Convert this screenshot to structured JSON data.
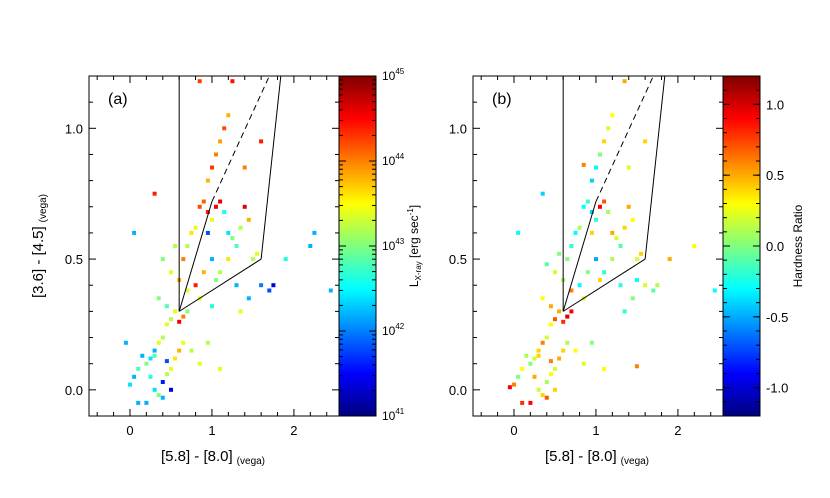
{
  "chart_data": [
    {
      "type": "scatter",
      "panel_label": "(a)",
      "xlabel_main": "[5.8] - [8.0]",
      "xlabel_sub": "(vega)",
      "ylabel_main": "[3.6] - [4.5]",
      "ylabel_sub": "(vega)",
      "xlim": [
        -0.5,
        2.55
      ],
      "ylim": [
        -0.1,
        1.2
      ],
      "xticks": [
        0,
        1,
        2
      ],
      "xticklabels": [
        "0",
        "1",
        "2"
      ],
      "yticks": [
        0.0,
        0.5,
        1.0
      ],
      "yticklabels": [
        "0.0",
        "0.5",
        "1.0"
      ],
      "colorbar": {
        "label_main": "L",
        "label_sub": "X-ray",
        "label_unit": " [erg sec",
        "label_exp": "-1",
        "label_close": "]",
        "scale": "log",
        "range_exp": [
          41,
          45
        ],
        "ticklabels": [
          {
            "base": "10",
            "exp": "41"
          },
          {
            "base": "10",
            "exp": "42"
          },
          {
            "base": "10",
            "exp": "43"
          },
          {
            "base": "10",
            "exp": "44"
          },
          {
            "base": "10",
            "exp": "45"
          }
        ]
      },
      "wedge": {
        "left_x": 0.6,
        "corner": [
          0.6,
          0.3
        ],
        "knee": [
          1.6,
          0.5
        ],
        "top_right": [
          1.84,
          1.2
        ],
        "dashed_from": [
          1.0,
          0.72
        ],
        "dashed_to": [
          1.7,
          1.2
        ]
      },
      "points": [
        [
          0.05,
          0.6,
          0.3
        ],
        [
          0.3,
          0.75,
          0.85
        ],
        [
          0.85,
          1.18,
          0.82
        ],
        [
          1.25,
          1.18,
          0.86
        ],
        [
          0.5,
          0.45,
          0.6
        ],
        [
          0.55,
          0.55,
          0.55
        ],
        [
          0.4,
          0.5,
          0.5
        ],
        [
          0.35,
          0.35,
          0.5
        ],
        [
          0.45,
          0.32,
          0.45
        ],
        [
          0.6,
          0.42,
          0.7
        ],
        [
          0.65,
          0.5,
          0.75
        ],
        [
          0.7,
          0.55,
          0.55
        ],
        [
          0.75,
          0.6,
          0.65
        ],
        [
          0.8,
          0.62,
          0.6
        ],
        [
          0.85,
          0.7,
          0.8
        ],
        [
          0.9,
          0.72,
          0.78
        ],
        [
          0.95,
          0.8,
          0.7
        ],
        [
          1.0,
          0.85,
          0.82
        ],
        [
          1.05,
          0.9,
          0.75
        ],
        [
          1.1,
          0.95,
          0.72
        ],
        [
          1.15,
          1.0,
          0.8
        ],
        [
          1.2,
          1.05,
          0.7
        ],
        [
          1.05,
          0.7,
          0.88
        ],
        [
          1.1,
          0.72,
          0.9
        ],
        [
          0.95,
          0.68,
          0.85
        ],
        [
          1.0,
          0.65,
          0.6
        ],
        [
          1.15,
          0.68,
          0.4
        ],
        [
          1.2,
          0.6,
          0.35
        ],
        [
          1.25,
          0.58,
          0.5
        ],
        [
          1.3,
          0.55,
          0.45
        ],
        [
          1.35,
          0.62,
          0.55
        ],
        [
          1.4,
          0.7,
          0.9
        ],
        [
          1.45,
          0.65,
          0.7
        ],
        [
          1.5,
          0.5,
          0.55
        ],
        [
          1.55,
          0.52,
          0.6
        ],
        [
          1.6,
          0.95,
          0.85
        ],
        [
          1.4,
          0.85,
          0.75
        ],
        [
          1.2,
          0.5,
          0.65
        ],
        [
          1.1,
          0.45,
          0.55
        ],
        [
          0.7,
          0.38,
          0.6
        ],
        [
          0.8,
          0.4,
          0.85
        ],
        [
          0.9,
          0.45,
          0.7
        ],
        [
          1.0,
          0.5,
          0.3
        ],
        [
          1.05,
          0.42,
          0.5
        ],
        [
          0.85,
          0.35,
          0.6
        ],
        [
          0.7,
          0.3,
          0.5
        ],
        [
          0.65,
          0.28,
          0.75
        ],
        [
          0.6,
          0.26,
          0.88
        ],
        [
          0.55,
          0.3,
          0.6
        ],
        [
          0.5,
          0.27,
          0.55
        ],
        [
          0.45,
          0.25,
          0.6
        ],
        [
          0.4,
          0.2,
          0.55
        ],
        [
          0.35,
          0.18,
          0.6
        ],
        [
          0.3,
          0.15,
          0.3
        ],
        [
          0.25,
          0.12,
          0.35
        ],
        [
          0.2,
          0.1,
          0.5
        ],
        [
          0.15,
          0.13,
          0.3
        ],
        [
          0.1,
          0.08,
          0.45
        ],
        [
          0.05,
          0.05,
          0.3
        ],
        [
          0.0,
          0.02,
          0.35
        ],
        [
          -0.05,
          0.18,
          0.3
        ],
        [
          0.25,
          0.05,
          0.4
        ],
        [
          0.3,
          0.0,
          0.35
        ],
        [
          0.35,
          -0.02,
          0.5
        ],
        [
          0.4,
          0.03,
          0.15
        ],
        [
          0.45,
          0.06,
          0.55
        ],
        [
          0.5,
          0.08,
          0.6
        ],
        [
          0.55,
          0.12,
          0.65
        ],
        [
          0.6,
          0.15,
          0.7
        ],
        [
          0.65,
          0.18,
          0.6
        ],
        [
          0.75,
          0.15,
          0.55
        ],
        [
          0.85,
          0.1,
          0.6
        ],
        [
          0.95,
          0.18,
          0.55
        ],
        [
          1.1,
          0.08,
          0.6
        ],
        [
          0.2,
          -0.05,
          0.3
        ],
        [
          0.1,
          -0.05,
          0.3
        ],
        [
          0.4,
          -0.03,
          0.3
        ],
        [
          0.5,
          0.0,
          0.1
        ],
        [
          0.45,
          0.11,
          0.2
        ],
        [
          0.3,
          0.13,
          0.45
        ],
        [
          1.3,
          0.4,
          0.3
        ],
        [
          1.45,
          0.35,
          0.3
        ],
        [
          1.7,
          0.38,
          0.2
        ],
        [
          1.75,
          0.4,
          0.1
        ],
        [
          1.9,
          0.5,
          0.4
        ],
        [
          2.2,
          0.55,
          0.3
        ],
        [
          2.25,
          0.6,
          0.3
        ],
        [
          2.45,
          0.38,
          0.3
        ],
        [
          1.6,
          0.4,
          0.25
        ],
        [
          1.0,
          0.32,
          0.4
        ],
        [
          0.95,
          0.6,
          0.2
        ],
        [
          1.35,
          0.3,
          0.6
        ]
      ]
    },
    {
      "type": "scatter",
      "panel_label": "(b)",
      "xlabel_main": "[5.8] - [8.0]",
      "xlabel_sub": "(vega)",
      "ylabel_main": "",
      "ylabel_sub": "",
      "xlim": [
        -0.5,
        2.55
      ],
      "ylim": [
        -0.1,
        1.2
      ],
      "xticks": [
        0,
        1,
        2
      ],
      "xticklabels": [
        "0",
        "1",
        "2"
      ],
      "yticks": [
        0.0,
        0.5,
        1.0
      ],
      "yticklabels": [
        "0.0",
        "0.5",
        "1.0"
      ],
      "colorbar": {
        "label": "Hardness Ratio",
        "scale": "linear",
        "range": [
          -1.2,
          1.2
        ],
        "ticks": [
          -1.0,
          -0.5,
          0.0,
          0.5,
          1.0
        ],
        "ticklabels": [
          "-1.0",
          "-0.5",
          "0.0",
          "0.5",
          "1.0"
        ]
      },
      "wedge": {
        "left_x": 0.6,
        "corner": [
          0.6,
          0.3
        ],
        "knee": [
          1.6,
          0.5
        ],
        "top_right": [
          1.84,
          1.2
        ],
        "dashed_from": [
          1.0,
          0.72
        ],
        "dashed_to": [
          1.7,
          1.2
        ]
      },
      "points": [
        [
          0.05,
          0.6,
          -0.3
        ],
        [
          0.35,
          0.75,
          -0.4
        ],
        [
          0.85,
          0.86,
          0.6
        ],
        [
          1.35,
          1.18,
          0.5
        ],
        [
          0.5,
          0.45,
          0.2
        ],
        [
          0.55,
          0.52,
          0.0
        ],
        [
          0.4,
          0.48,
          -0.1
        ],
        [
          0.35,
          0.35,
          0.3
        ],
        [
          0.45,
          0.32,
          0.5
        ],
        [
          0.6,
          0.42,
          0.1
        ],
        [
          0.65,
          0.5,
          0.0
        ],
        [
          0.7,
          0.55,
          -0.2
        ],
        [
          0.75,
          0.6,
          -0.3
        ],
        [
          0.8,
          0.62,
          0.1
        ],
        [
          0.85,
          0.7,
          -0.3
        ],
        [
          0.9,
          0.72,
          -0.2
        ],
        [
          0.95,
          0.8,
          -0.4
        ],
        [
          1.0,
          0.85,
          -0.3
        ],
        [
          1.05,
          0.9,
          0.0
        ],
        [
          1.1,
          0.95,
          0.4
        ],
        [
          1.15,
          1.0,
          0.2
        ],
        [
          1.2,
          1.05,
          0.3
        ],
        [
          1.05,
          0.7,
          0.9
        ],
        [
          1.1,
          0.72,
          0.7
        ],
        [
          0.95,
          0.68,
          -0.4
        ],
        [
          1.0,
          0.65,
          -0.2
        ],
        [
          1.15,
          0.68,
          0.1
        ],
        [
          1.2,
          0.6,
          0.5
        ],
        [
          1.25,
          0.58,
          0.2
        ],
        [
          1.3,
          0.55,
          -0.1
        ],
        [
          1.35,
          0.62,
          0.4
        ],
        [
          1.4,
          0.7,
          0.5
        ],
        [
          1.45,
          0.65,
          0.3
        ],
        [
          1.5,
          0.5,
          0.2
        ],
        [
          1.55,
          0.52,
          0.4
        ],
        [
          1.6,
          0.95,
          0.4
        ],
        [
          1.4,
          0.85,
          0.2
        ],
        [
          1.2,
          0.5,
          0.1
        ],
        [
          1.1,
          0.45,
          -0.2
        ],
        [
          0.7,
          0.38,
          0.6
        ],
        [
          0.8,
          0.4,
          -0.3
        ],
        [
          0.9,
          0.45,
          0.0
        ],
        [
          1.0,
          0.5,
          -0.5
        ],
        [
          1.05,
          0.42,
          0.4
        ],
        [
          0.85,
          0.35,
          0.2
        ],
        [
          0.7,
          0.3,
          0.9
        ],
        [
          0.65,
          0.28,
          1.0
        ],
        [
          0.6,
          0.26,
          0.8
        ],
        [
          0.55,
          0.3,
          0.5
        ],
        [
          0.5,
          0.27,
          0.7
        ],
        [
          0.45,
          0.25,
          0.3
        ],
        [
          0.4,
          0.2,
          0.2
        ],
        [
          0.35,
          0.18,
          0.6
        ],
        [
          0.3,
          0.15,
          0.4
        ],
        [
          0.25,
          0.12,
          0.2
        ],
        [
          0.2,
          0.1,
          0.0
        ],
        [
          0.15,
          0.13,
          0.1
        ],
        [
          0.1,
          0.08,
          0.3
        ],
        [
          0.05,
          0.05,
          0.0
        ],
        [
          0.0,
          0.02,
          0.6
        ],
        [
          -0.05,
          0.01,
          0.9
        ],
        [
          0.25,
          0.05,
          0.5
        ],
        [
          0.3,
          0.0,
          0.2
        ],
        [
          0.35,
          -0.02,
          0.4
        ],
        [
          0.4,
          0.03,
          0.1
        ],
        [
          0.45,
          0.06,
          0.3
        ],
        [
          0.5,
          0.08,
          0.2
        ],
        [
          0.55,
          0.12,
          0.5
        ],
        [
          0.6,
          0.15,
          0.4
        ],
        [
          0.65,
          0.18,
          0.1
        ],
        [
          0.75,
          0.15,
          0.3
        ],
        [
          0.85,
          0.1,
          0.2
        ],
        [
          0.95,
          0.18,
          0.0
        ],
        [
          1.1,
          0.08,
          0.3
        ],
        [
          0.2,
          -0.05,
          0.9
        ],
        [
          0.1,
          -0.05,
          0.8
        ],
        [
          0.4,
          -0.03,
          0.7
        ],
        [
          0.5,
          0.0,
          0.4
        ],
        [
          0.45,
          0.11,
          0.6
        ],
        [
          0.3,
          0.13,
          0.4
        ],
        [
          1.3,
          0.4,
          -0.2
        ],
        [
          1.45,
          0.35,
          0.0
        ],
        [
          1.7,
          0.38,
          -0.1
        ],
        [
          1.75,
          0.4,
          0.1
        ],
        [
          1.9,
          0.5,
          0.5
        ],
        [
          2.2,
          0.55,
          0.3
        ],
        [
          1.5,
          0.42,
          -0.3
        ],
        [
          2.45,
          0.38,
          -0.3
        ],
        [
          1.6,
          0.4,
          0.2
        ],
        [
          1.5,
          0.09,
          0.6
        ],
        [
          0.95,
          0.6,
          0.4
        ],
        [
          1.35,
          0.3,
          -0.2
        ]
      ]
    }
  ]
}
